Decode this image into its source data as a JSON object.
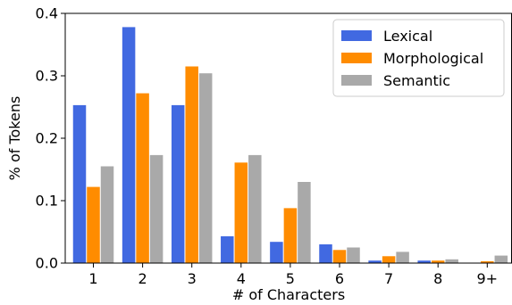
{
  "chart_data": {
    "type": "bar",
    "xlabel": "# of Characters",
    "ylabel": "% of Tokens",
    "categories": [
      "1",
      "2",
      "3",
      "4",
      "5",
      "6",
      "7",
      "8",
      "9+"
    ],
    "ylim": [
      0,
      0.4
    ],
    "yticks": [
      "0.0",
      "0.1",
      "0.2",
      "0.3",
      "0.4"
    ],
    "legend_position": "top-right",
    "grid": false,
    "series": [
      {
        "name": "Lexical",
        "color": "#4169e1",
        "values": [
          0.253,
          0.378,
          0.253,
          0.043,
          0.034,
          0.03,
          0.004,
          0.004,
          0.0
        ]
      },
      {
        "name": "Morphological",
        "color": "#ff8c00",
        "values": [
          0.122,
          0.272,
          0.315,
          0.161,
          0.088,
          0.021,
          0.011,
          0.004,
          0.003
        ]
      },
      {
        "name": "Semantic",
        "color": "#a9a9a9",
        "values": [
          0.155,
          0.173,
          0.304,
          0.173,
          0.13,
          0.025,
          0.018,
          0.006,
          0.012
        ]
      }
    ]
  }
}
